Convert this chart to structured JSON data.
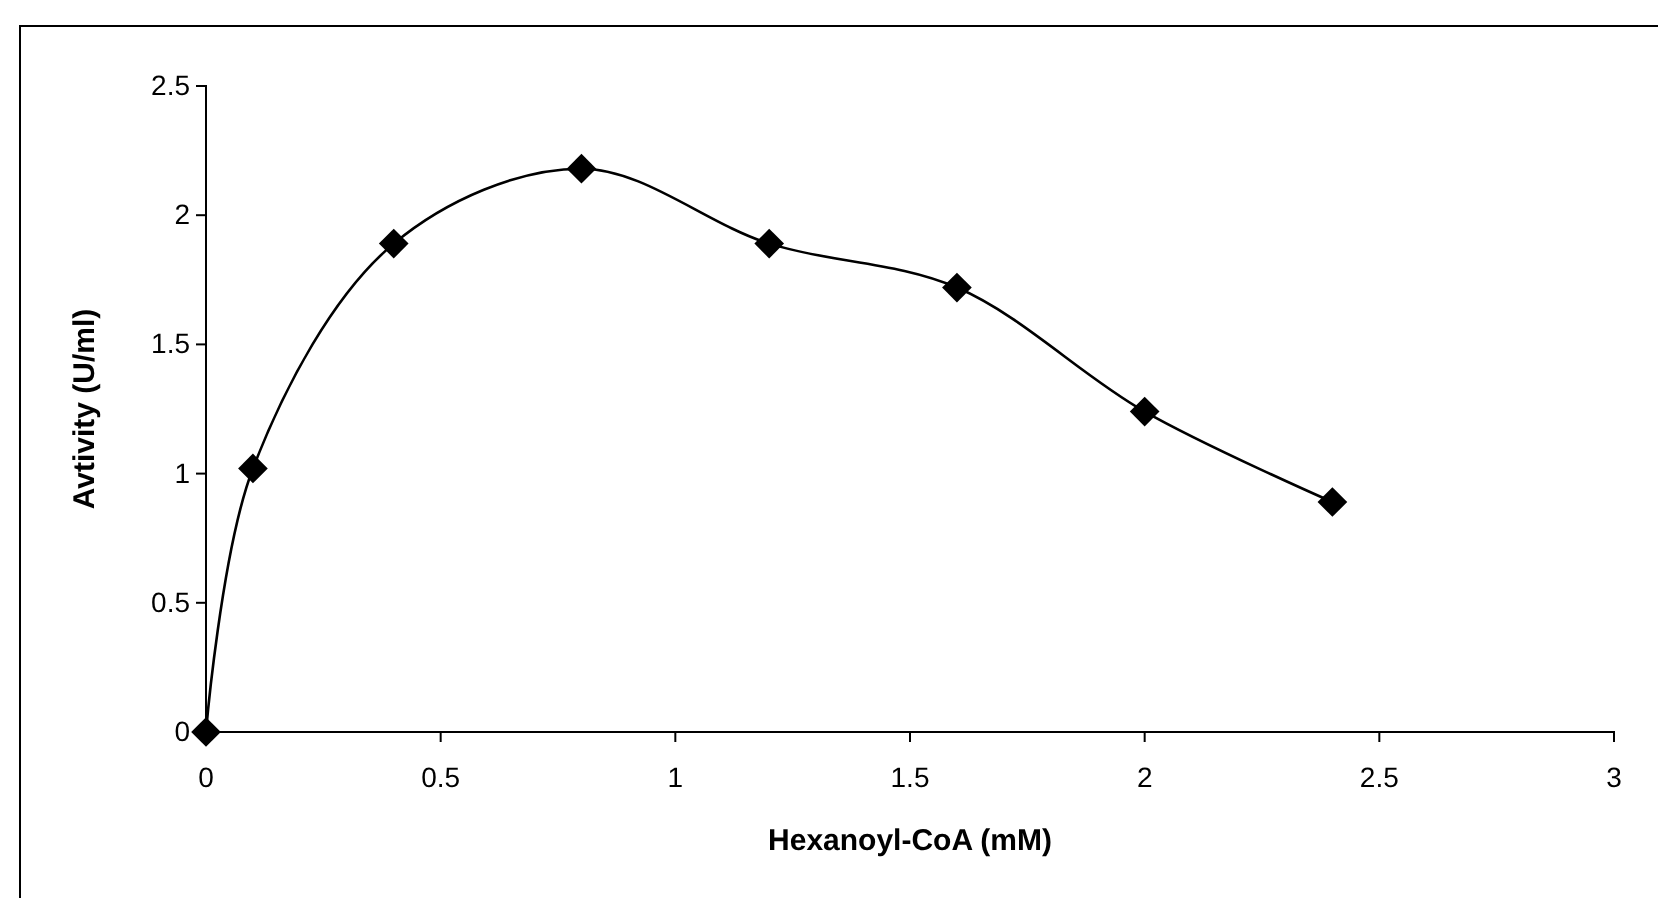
{
  "chart_data": {
    "type": "line",
    "xlabel": "Hexanoyl-CoA (mM)",
    "ylabel": "Avtivity (U/ml)",
    "x": [
      0,
      0.1,
      0.4,
      0.8,
      1.2,
      1.6,
      2.0,
      2.4
    ],
    "series": [
      {
        "color": "#000000",
        "values": [
          0,
          1.02,
          1.89,
          2.18,
          1.89,
          1.72,
          1.24,
          0.89
        ]
      }
    ],
    "xlim": [
      0,
      3
    ],
    "xticks": [
      0,
      0.5,
      1,
      1.5,
      2,
      2.5,
      3
    ],
    "ylim": [
      0,
      2.5
    ],
    "yticks": [
      0,
      0.5,
      1,
      1.5,
      2,
      2.5
    ],
    "marker": "diamond",
    "line_style": "solid"
  }
}
